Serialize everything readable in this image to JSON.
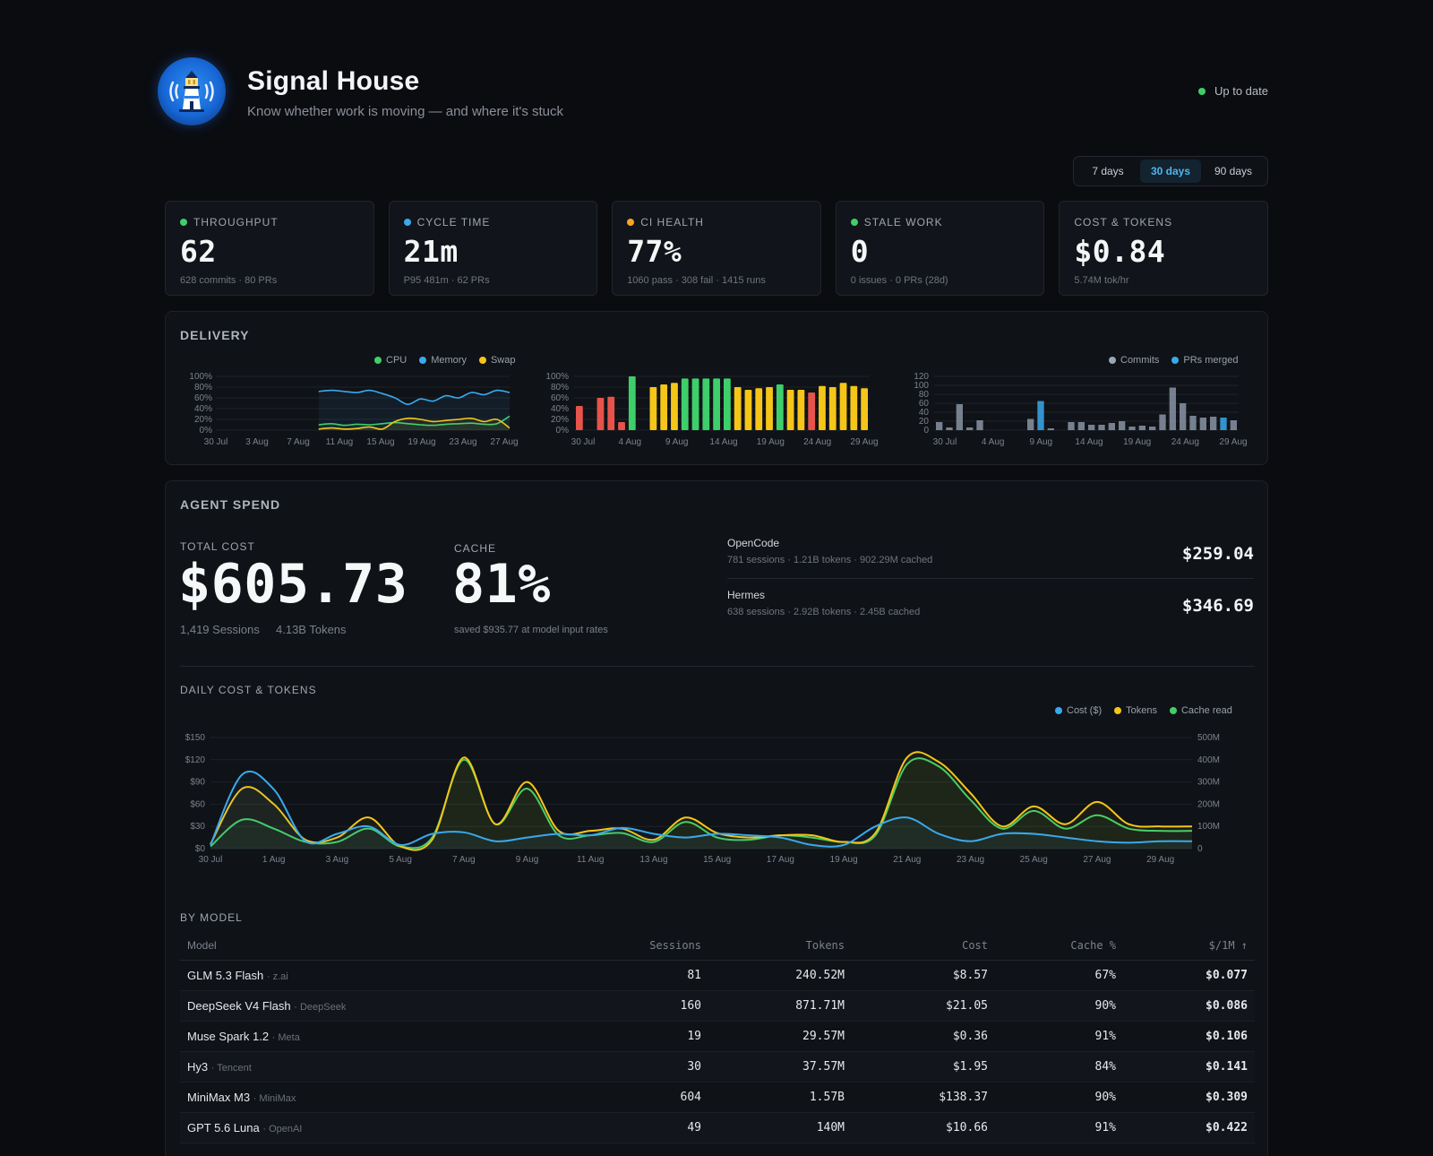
{
  "header": {
    "title": "Signal House",
    "subtitle": "Know whether work is moving — and where it's stuck",
    "status": "Up to date",
    "status_color": "#3ecf6b"
  },
  "range": {
    "options": [
      "7 days",
      "30 days",
      "90 days"
    ],
    "selected": "30 days"
  },
  "kpis": [
    {
      "label": "THROUGHPUT",
      "value": "62",
      "sub": "628 commits · 80 PRs",
      "dot": "#3ecf6b"
    },
    {
      "label": "CYCLE TIME",
      "value": "21m",
      "sub": "P95 481m · 62 PRs",
      "dot": "#3aa9ec"
    },
    {
      "label": "CI HEALTH",
      "value": "77%",
      "sub": "1060 pass · 308 fail · 1415 runs",
      "dot": "#f5a524"
    },
    {
      "label": "STALE WORK",
      "value": "0",
      "sub": "0 issues · 0 PRs (28d)",
      "dot": "#3ecf6b"
    },
    {
      "label": "COST & TOKENS",
      "value": "$0.84",
      "sub": "5.74M tok/hr",
      "dot": ""
    }
  ],
  "delivery": {
    "title": "DELIVERY",
    "legend_left": [
      {
        "name": "CPU",
        "color": "#3ecf6b"
      },
      {
        "name": "Memory",
        "color": "#3aa9ec"
      },
      {
        "name": "Swap",
        "color": "#f5c518"
      }
    ],
    "legend_right": [
      {
        "name": "Commits",
        "color": "#9aa6b8"
      },
      {
        "name": "PRs merged",
        "color": "#3aa9ec"
      }
    ]
  },
  "spend": {
    "title": "AGENT SPEND",
    "total_label": "TOTAL COST",
    "total_value": "$605.73",
    "sessions": "1,419 Sessions",
    "tokens": "4.13B Tokens",
    "cache_label": "CACHE",
    "cache_value": "81%",
    "cache_sub": "saved $935.77 at model input rates",
    "agents": [
      {
        "name": "OpenCode",
        "meta": "781 sessions · 1.21B tokens · 902.29M cached",
        "cost": "$259.04"
      },
      {
        "name": "Hermes",
        "meta": "638 sessions · 2.92B tokens · 2.45B cached",
        "cost": "$346.69"
      }
    ],
    "daily_title": "DAILY COST & TOKENS",
    "daily_legend": [
      {
        "name": "Cost ($)",
        "color": "#3aa9ec"
      },
      {
        "name": "Tokens",
        "color": "#f5c518"
      },
      {
        "name": "Cache read",
        "color": "#3ecf6b"
      }
    ],
    "by_model_title": "BY MODEL",
    "table_headers": [
      "Model",
      "Sessions",
      "Tokens",
      "Cost",
      "Cache %",
      "$/1M ↑"
    ],
    "models": [
      {
        "name": "GLM 5.3 Flash",
        "vendor": "· z.ai",
        "sessions": "81",
        "tokens": "240.52M",
        "cost": "$8.57",
        "cache": "67%",
        "per_m": "$0.077"
      },
      {
        "name": "DeepSeek V4 Flash",
        "vendor": "· DeepSeek",
        "sessions": "160",
        "tokens": "871.71M",
        "cost": "$21.05",
        "cache": "90%",
        "per_m": "$0.086"
      },
      {
        "name": "Muse Spark 1.2",
        "vendor": "· Meta",
        "sessions": "19",
        "tokens": "29.57M",
        "cost": "$0.36",
        "cache": "91%",
        "per_m": "$0.106"
      },
      {
        "name": "Hy3",
        "vendor": "· Tencent",
        "sessions": "30",
        "tokens": "37.57M",
        "cost": "$1.95",
        "cache": "84%",
        "per_m": "$0.141"
      },
      {
        "name": "MiniMax M3",
        "vendor": "· MiniMax",
        "sessions": "604",
        "tokens": "1.57B",
        "cost": "$138.37",
        "cache": "90%",
        "per_m": "$0.309"
      },
      {
        "name": "GPT 5.6 Luna",
        "vendor": "· OpenAI",
        "sessions": "49",
        "tokens": "140M",
        "cost": "$10.66",
        "cache": "91%",
        "per_m": "$0.422"
      }
    ]
  },
  "chart_data": [
    {
      "type": "area",
      "series": [
        {
          "name": "CPU",
          "color": "#3ecf6b",
          "values": [
            10,
            12,
            9,
            11,
            10,
            12,
            14,
            12,
            10,
            9,
            11,
            12,
            13,
            11,
            12,
            26
          ]
        },
        {
          "name": "Memory",
          "color": "#3aa9ec",
          "values": [
            72,
            74,
            72,
            70,
            74,
            68,
            60,
            48,
            58,
            54,
            64,
            60,
            70,
            66,
            74,
            70
          ]
        },
        {
          "name": "Swap",
          "color": "#f5c518",
          "values": [
            2,
            4,
            2,
            3,
            6,
            2,
            16,
            22,
            20,
            16,
            18,
            20,
            22,
            16,
            20,
            4
          ]
        }
      ],
      "x_ticks": [
        "30 Jul",
        "3 Aug",
        "7 Aug",
        "11 Aug",
        "15 Aug",
        "19 Aug",
        "23 Aug",
        "27 Aug"
      ],
      "y_ticks": [
        "0%",
        "20%",
        "40%",
        "60%",
        "80%",
        "100%"
      ],
      "ylim": [
        0,
        100
      ]
    },
    {
      "type": "bar",
      "values": [
        45,
        0,
        60,
        62,
        15,
        100,
        0,
        80,
        85,
        88,
        96,
        96,
        96,
        96,
        96,
        80,
        75,
        78,
        80,
        85,
        75,
        75,
        70,
        82,
        80,
        88,
        82,
        78
      ],
      "colors": [
        "#e5534b",
        "",
        "#e5534b",
        "#e5534b",
        "#e5534b",
        "#3ecf6b",
        "",
        "#f5c518",
        "#f5c518",
        "#f5c518",
        "#3ecf6b",
        "#3ecf6b",
        "#3ecf6b",
        "#3ecf6b",
        "#3ecf6b",
        "#f5c518",
        "#f5c518",
        "#f5c518",
        "#f5c518",
        "#3ecf6b",
        "#f5c518",
        "#f5c518",
        "#e5534b",
        "#f5c518",
        "#f5c518",
        "#f5c518",
        "#f5c518",
        "#f5c518"
      ],
      "x_ticks": [
        "30 Jul",
        "4 Aug",
        "9 Aug",
        "14 Aug",
        "19 Aug",
        "24 Aug",
        "29 Aug"
      ],
      "y_ticks": [
        "0%",
        "20%",
        "40%",
        "60%",
        "80%",
        "100%"
      ],
      "ylim": [
        0,
        100
      ]
    },
    {
      "type": "bar",
      "series": [
        {
          "name": "Commits",
          "color": "#9aa6b8",
          "values": [
            18,
            6,
            58,
            6,
            22,
            0,
            0,
            0,
            0,
            25,
            22,
            4,
            0,
            18,
            18,
            12,
            12,
            16,
            20,
            8,
            10,
            8,
            35,
            95,
            60,
            32,
            28,
            30,
            20,
            22
          ]
        },
        {
          "name": "PRs merged",
          "color": "#3aa9ec",
          "values": [
            0,
            0,
            0,
            0,
            0,
            0,
            0,
            0,
            0,
            0,
            65,
            0,
            0,
            0,
            0,
            0,
            0,
            0,
            0,
            0,
            0,
            0,
            0,
            0,
            0,
            0,
            0,
            0,
            28,
            0
          ]
        }
      ],
      "x_ticks": [
        "30 Jul",
        "4 Aug",
        "9 Aug",
        "14 Aug",
        "19 Aug",
        "24 Aug",
        "29 Aug"
      ],
      "y_ticks": [
        "0",
        "20",
        "40",
        "60",
        "80",
        "100",
        "120"
      ],
      "ylim": [
        0,
        120
      ]
    },
    {
      "type": "line",
      "title": "DAILY COST & TOKENS",
      "x": [
        "30 Jul",
        "31 Jul",
        "1 Aug",
        "2 Aug",
        "3 Aug",
        "4 Aug",
        "5 Aug",
        "6 Aug",
        "7 Aug",
        "8 Aug",
        "9 Aug",
        "10 Aug",
        "11 Aug",
        "12 Aug",
        "13 Aug",
        "14 Aug",
        "15 Aug",
        "16 Aug",
        "17 Aug",
        "18 Aug",
        "19 Aug",
        "20 Aug",
        "21 Aug",
        "22 Aug",
        "23 Aug",
        "24 Aug",
        "25 Aug",
        "26 Aug",
        "27 Aug",
        "28 Aug",
        "29 Aug",
        "30 Aug"
      ],
      "x_ticks": [
        "30 Jul",
        "1 Aug",
        "3 Aug",
        "5 Aug",
        "7 Aug",
        "9 Aug",
        "11 Aug",
        "13 Aug",
        "15 Aug",
        "17 Aug",
        "19 Aug",
        "21 Aug",
        "23 Aug",
        "25 Aug",
        "27 Aug",
        "29 Aug"
      ],
      "series": [
        {
          "name": "Cost ($)",
          "color": "#3aa9ec",
          "axis": "left",
          "values": [
            5,
            100,
            80,
            10,
            20,
            30,
            5,
            20,
            22,
            10,
            15,
            20,
            18,
            28,
            20,
            15,
            20,
            18,
            15,
            5,
            5,
            30,
            42,
            20,
            10,
            20,
            20,
            15,
            10,
            8,
            10,
            10
          ]
        },
        {
          "name": "Tokens",
          "color": "#f5c518",
          "axis": "right",
          "values": [
            20,
            270,
            200,
            40,
            50,
            140,
            10,
            40,
            410,
            110,
            300,
            80,
            80,
            90,
            40,
            140,
            70,
            50,
            60,
            60,
            30,
            70,
            410,
            390,
            250,
            100,
            190,
            110,
            210,
            110,
            100,
            100
          ]
        },
        {
          "name": "Cache read",
          "color": "#3ecf6b",
          "axis": "right",
          "values": [
            10,
            130,
            90,
            30,
            30,
            90,
            10,
            50,
            400,
            110,
            270,
            60,
            60,
            70,
            30,
            120,
            50,
            40,
            60,
            50,
            30,
            60,
            380,
            370,
            220,
            90,
            170,
            90,
            150,
            90,
            80,
            80
          ]
        }
      ],
      "y_left_ticks": [
        "$0",
        "$30",
        "$60",
        "$90",
        "$120",
        "$150"
      ],
      "y_right_ticks": [
        "0",
        "100M",
        "200M",
        "300M",
        "400M",
        "500M"
      ],
      "ylim_left": [
        0,
        150
      ],
      "ylim_right": [
        0,
        500
      ]
    }
  ]
}
